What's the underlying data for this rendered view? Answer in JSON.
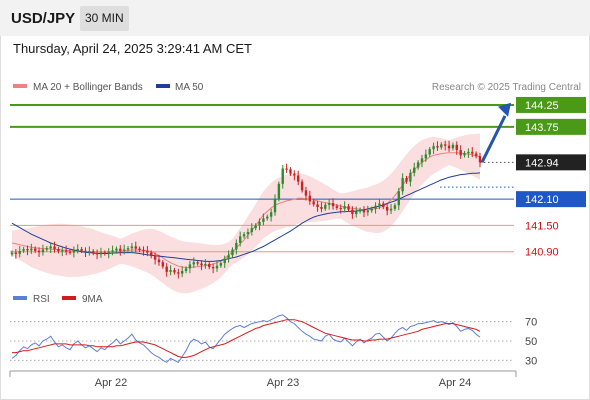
{
  "header": {
    "pair": "USD/JPY",
    "timeframe": "30 MIN",
    "datetime": "Thursday, April 24, 2025 3:29:41 AM CET"
  },
  "legend": {
    "ma20": "MA 20 + Bollinger Bands",
    "ma50": "MA 50",
    "credit": "Research © 2025 Trading Central",
    "rsi": "RSI",
    "rsi_ma": "9MA"
  },
  "colors": {
    "resistance": "#4a9a17",
    "support": "#1f58c6",
    "pivot": "#1f58c6",
    "secondary_support": "#f09090",
    "secondary_text": "#cc1111",
    "current_price": "#222222",
    "candle_up": "#2e8b2e",
    "candle_down": "#cc2222",
    "ma20": "#f08080",
    "ma50": "#1f3d99",
    "band": "#fadadd",
    "arrow": "#2556a8",
    "rsi_line": "#5c7fd6",
    "rsi_ma": "#d61a1a"
  },
  "chart_data": {
    "type": "candlestick",
    "y_range": [
      140.3,
      144.5
    ],
    "levels": [
      {
        "value": 144.25,
        "label": "144.25",
        "kind": "resistance"
      },
      {
        "value": 143.75,
        "label": "143.75",
        "kind": "resistance"
      },
      {
        "value": 142.94,
        "label": "142.94",
        "kind": "current"
      },
      {
        "value": 142.1,
        "label": "142.10",
        "kind": "pivot"
      },
      {
        "value": 141.5,
        "label": "141.50",
        "kind": "support"
      },
      {
        "value": 140.9,
        "label": "140.90",
        "kind": "support"
      }
    ],
    "x_ticks": [
      "Apr 22",
      "Apr 23",
      "Apr 24"
    ],
    "close": [
      140.88,
      140.85,
      140.92,
      140.96,
      140.93,
      140.97,
      140.92,
      140.89,
      140.95,
      140.98,
      141.02,
      140.96,
      140.91,
      140.93,
      140.9,
      140.88,
      140.94,
      140.96,
      140.92,
      140.89,
      140.91,
      140.87,
      140.84,
      140.88,
      140.86,
      140.9,
      140.93,
      140.97,
      140.92,
      140.95,
      140.98,
      141.02,
      140.97,
      140.94,
      140.92,
      140.88,
      140.8,
      140.72,
      140.66,
      140.56,
      140.44,
      140.48,
      140.43,
      140.4,
      140.46,
      140.52,
      140.61,
      140.66,
      140.63,
      140.59,
      140.62,
      140.55,
      140.52,
      140.58,
      140.64,
      140.73,
      140.82,
      140.95,
      141.1,
      141.25,
      141.3,
      141.35,
      141.44,
      141.5,
      141.58,
      141.66,
      141.7,
      141.8,
      142.1,
      142.45,
      142.8,
      142.78,
      142.68,
      142.64,
      142.5,
      142.3,
      142.18,
      142.05,
      141.98,
      141.92,
      141.88,
      141.97,
      142.01,
      141.94,
      141.9,
      141.88,
      141.94,
      141.86,
      141.76,
      141.82,
      141.86,
      141.8,
      141.84,
      141.88,
      141.95,
      142.0,
      141.92,
      141.84,
      141.88,
      141.96,
      142.28,
      142.58,
      142.5,
      142.7,
      142.82,
      142.94,
      143.03,
      143.12,
      143.24,
      143.31,
      143.28,
      143.35,
      143.32,
      143.26,
      143.34,
      143.22,
      143.1,
      143.15,
      143.18,
      143.14,
      143.08,
      142.94
    ],
    "ma20": [
      141.1,
      141.08,
      141.06,
      141.04,
      141.02,
      141.0,
      140.99,
      140.98,
      140.97,
      140.97,
      140.96,
      140.95,
      140.95,
      140.94,
      140.93,
      140.92,
      140.92,
      140.91,
      140.91,
      140.9,
      140.9,
      140.9,
      140.89,
      140.89,
      140.89,
      140.9,
      140.9,
      140.91,
      140.91,
      140.92,
      140.93,
      140.94,
      140.94,
      140.94,
      140.93,
      140.92,
      140.9,
      140.86,
      140.81,
      140.76,
      140.7,
      140.65,
      140.61,
      140.57,
      140.55,
      140.54,
      140.54,
      140.55,
      140.56,
      140.57,
      140.58,
      140.6,
      140.62,
      140.65,
      140.69,
      140.75,
      140.82,
      140.9,
      140.98,
      141.08,
      141.17,
      141.28,
      141.38,
      141.5,
      141.62,
      141.74,
      141.82,
      141.9,
      141.96,
      142.0,
      142.03,
      142.06,
      142.08,
      142.1,
      142.12,
      142.12,
      142.11,
      142.1,
      142.08,
      142.06,
      142.04,
      142.02,
      142.0,
      141.98,
      141.96,
      141.94,
      141.92,
      141.9,
      141.89,
      141.88,
      141.87,
      141.86,
      141.86,
      141.87,
      141.88,
      141.9,
      141.94,
      142.0,
      142.08,
      142.18,
      142.3,
      142.42,
      142.54,
      142.66,
      142.76,
      142.86,
      142.94,
      143.0,
      143.06,
      143.1,
      143.12,
      143.14,
      143.15,
      143.16,
      143.16,
      143.16,
      143.15,
      143.14,
      143.13,
      143.11,
      143.09,
      143.07
    ],
    "ma50": [
      141.55,
      141.5,
      141.45,
      141.4,
      141.35,
      141.3,
      141.26,
      141.22,
      141.18,
      141.14,
      141.1,
      141.07,
      141.04,
      141.01,
      140.98,
      140.96,
      140.94,
      140.92,
      140.9,
      140.89,
      140.88,
      140.87,
      140.86,
      140.86,
      140.86,
      140.86,
      140.87,
      140.87,
      140.88,
      140.88,
      140.88,
      140.88,
      140.87,
      140.86,
      140.84,
      140.83,
      140.82,
      140.81,
      140.8,
      140.79,
      140.78,
      140.77,
      140.76,
      140.75,
      140.74,
      140.73,
      140.72,
      140.71,
      140.7,
      140.69,
      140.68,
      140.68,
      140.68,
      140.69,
      140.7,
      140.72,
      140.74,
      140.76,
      140.78,
      140.81,
      140.84,
      140.87,
      140.9,
      140.94,
      140.98,
      141.02,
      141.07,
      141.12,
      141.17,
      141.22,
      141.27,
      141.32,
      141.37,
      141.43,
      141.49,
      141.55,
      141.6,
      141.65,
      141.69,
      141.72,
      141.74,
      141.76,
      141.78,
      141.79,
      141.8,
      141.81,
      141.81,
      141.82,
      141.82,
      141.83,
      141.84,
      141.86,
      141.88,
      141.9,
      141.92,
      141.94,
      141.97,
      142.0,
      142.03,
      142.06,
      142.1,
      142.14,
      142.18,
      142.22,
      142.26,
      142.3,
      142.34,
      142.38,
      142.42,
      142.46,
      142.5,
      142.54,
      142.57,
      142.6,
      142.62,
      142.64,
      142.66,
      142.67,
      142.68,
      142.69,
      142.69,
      142.7
    ],
    "rsi_range": [
      20,
      80
    ],
    "rsi_ticks": [
      70,
      50,
      30
    ],
    "rsi": [
      32,
      35,
      40,
      44,
      42,
      46,
      48,
      45,
      50,
      52,
      55,
      49,
      44,
      46,
      43,
      41,
      47,
      50,
      46,
      43,
      45,
      42,
      39,
      43,
      41,
      45,
      48,
      52,
      47,
      50,
      53,
      57,
      51,
      48,
      46,
      42,
      38,
      35,
      33,
      30,
      28,
      32,
      30,
      28,
      34,
      40,
      48,
      52,
      50,
      47,
      49,
      44,
      42,
      47,
      52,
      57,
      60,
      63,
      65,
      66,
      64,
      66,
      68,
      69,
      70,
      71,
      70,
      72,
      74,
      76,
      77,
      74,
      70,
      68,
      64,
      60,
      57,
      55,
      52,
      51,
      50,
      55,
      57,
      52,
      50,
      49,
      53,
      49,
      45,
      49,
      52,
      48,
      51,
      53,
      57,
      58,
      54,
      50,
      53,
      58,
      62,
      64,
      61,
      65,
      66,
      68,
      68,
      69,
      70,
      71,
      69,
      70,
      69,
      67,
      69,
      65,
      60,
      62,
      63,
      61,
      57,
      54
    ],
    "rsi_ma": [
      38,
      38,
      39,
      40,
      40,
      41,
      42,
      43,
      44,
      45,
      46,
      47,
      47,
      47,
      47,
      46,
      46,
      46,
      46,
      46,
      45,
      45,
      44,
      44,
      44,
      44,
      44,
      45,
      45,
      46,
      47,
      48,
      49,
      49,
      49,
      48,
      47,
      46,
      44,
      42,
      40,
      38,
      36,
      34,
      33,
      33,
      34,
      35,
      37,
      39,
      41,
      43,
      44,
      45,
      46,
      47,
      49,
      51,
      53,
      55,
      57,
      59,
      61,
      63,
      64,
      66,
      67,
      68,
      69,
      70,
      71,
      72,
      72,
      72,
      71,
      70,
      68,
      66,
      64,
      62,
      60,
      58,
      57,
      56,
      55,
      54,
      53,
      52,
      51,
      51,
      51,
      50,
      50,
      51,
      51,
      52,
      52,
      52,
      53,
      54,
      55,
      56,
      57,
      58,
      59,
      60,
      62,
      63,
      64,
      65,
      66,
      67,
      68,
      68,
      68,
      67,
      66,
      65,
      64,
      63,
      62,
      60
    ]
  }
}
